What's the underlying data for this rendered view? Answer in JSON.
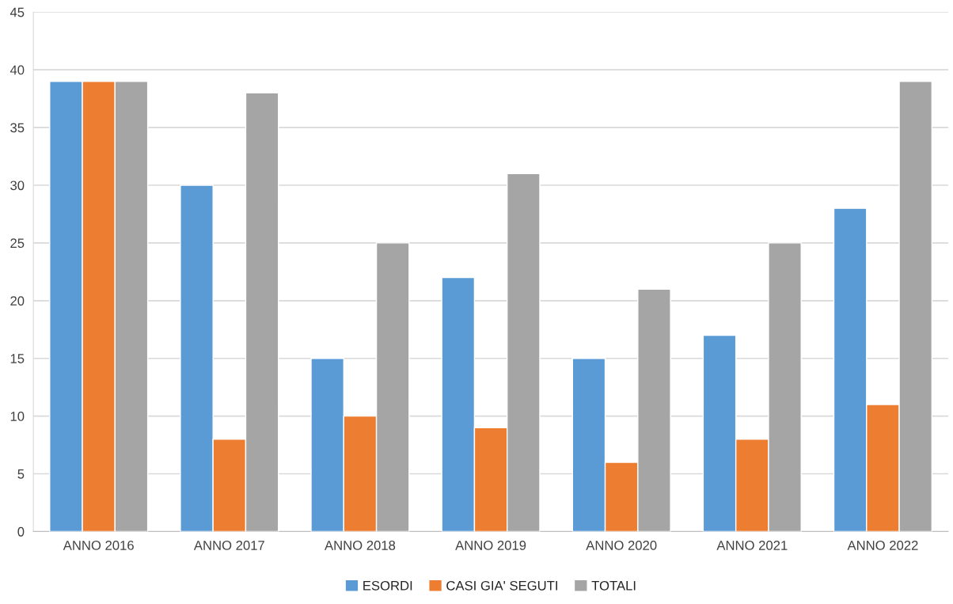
{
  "chart_data": {
    "type": "bar",
    "categories": [
      "ANNO 2016",
      "ANNO 2017",
      "ANNO 2018",
      "ANNO 2019",
      "ANNO 2020",
      "ANNO 2021",
      "ANNO 2022"
    ],
    "series": [
      {
        "name": "ESORDI",
        "color": "#5b9bd5",
        "values": [
          39,
          30,
          15,
          22,
          15,
          17,
          28
        ]
      },
      {
        "name": "CASI GIA' SEGUTI",
        "color": "#ed7d31",
        "values": [
          39,
          8,
          10,
          9,
          6,
          8,
          11
        ]
      },
      {
        "name": "TOTALI",
        "color": "#a5a5a5",
        "values": [
          39,
          38,
          25,
          31,
          21,
          25,
          39
        ]
      }
    ],
    "ylim": [
      0,
      45
    ],
    "yticks": [
      0,
      5,
      10,
      15,
      20,
      25,
      30,
      35,
      40,
      45
    ],
    "grid": "y",
    "legend": "bottom"
  }
}
